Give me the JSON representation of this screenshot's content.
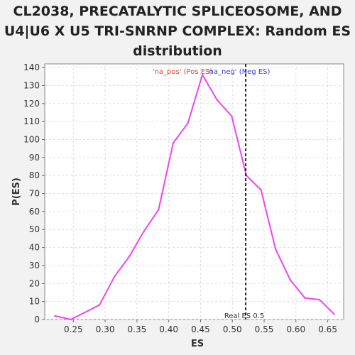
{
  "chart_data": {
    "type": "line",
    "title_lines": [
      "CL2038, PRECATALYTIC SPLICEOSOME, AND",
      "U4|U6 X U5 TRI-SNRNP COMPLEX: Random ES",
      "distribution"
    ],
    "xlabel": "ES",
    "ylabel": "P(ES)",
    "xlim": [
      0.205,
      0.675
    ],
    "ylim": [
      0,
      142
    ],
    "xticks": [
      {
        "value": 0.25,
        "label": "0.25"
      },
      {
        "value": 0.3,
        "label": "0.30"
      },
      {
        "value": 0.35,
        "label": "0.35"
      },
      {
        "value": 0.4,
        "label": "0.40"
      },
      {
        "value": 0.45,
        "label": "0.45"
      },
      {
        "value": 0.5,
        "label": "0.50"
      },
      {
        "value": 0.55,
        "label": "0.55"
      },
      {
        "value": 0.6,
        "label": "0.60"
      },
      {
        "value": 0.65,
        "label": "0.65"
      }
    ],
    "yticks": [
      {
        "value": 0,
        "label": "0"
      },
      {
        "value": 10,
        "label": "10"
      },
      {
        "value": 20,
        "label": "20"
      },
      {
        "value": 30,
        "label": "30"
      },
      {
        "value": 40,
        "label": "40"
      },
      {
        "value": 50,
        "label": "50"
      },
      {
        "value": 60,
        "label": "60"
      },
      {
        "value": 70,
        "label": "70"
      },
      {
        "value": 80,
        "label": "80"
      },
      {
        "value": 90,
        "label": "90"
      },
      {
        "value": 100,
        "label": "100"
      },
      {
        "value": 110,
        "label": "110"
      },
      {
        "value": 120,
        "label": "120"
      },
      {
        "value": 130,
        "label": "130"
      },
      {
        "value": 140,
        "label": "140"
      }
    ],
    "grid": true,
    "series": [
      {
        "color": "#ee44ee",
        "x": [
          0.221,
          0.246,
          0.291,
          0.315,
          0.338,
          0.361,
          0.384,
          0.407,
          0.43,
          0.453,
          0.476,
          0.499,
          0.522,
          0.545,
          0.568,
          0.591,
          0.614,
          0.637,
          0.66
        ],
        "y": [
          2,
          0,
          8,
          24,
          35,
          49,
          61,
          98,
          109,
          136,
          122,
          113,
          80,
          72,
          39,
          22,
          12,
          11,
          3
        ]
      }
    ],
    "real_es": {
      "value": 0.521,
      "label": "Real ES 0.5",
      "color": "#222222"
    },
    "annotations": [
      {
        "text": "'na_pos' (Pos ES)",
        "color": "#e03c3c"
      },
      {
        "text": "'na_neg' (Neg ES)",
        "color": "#3c3ccc"
      }
    ]
  }
}
